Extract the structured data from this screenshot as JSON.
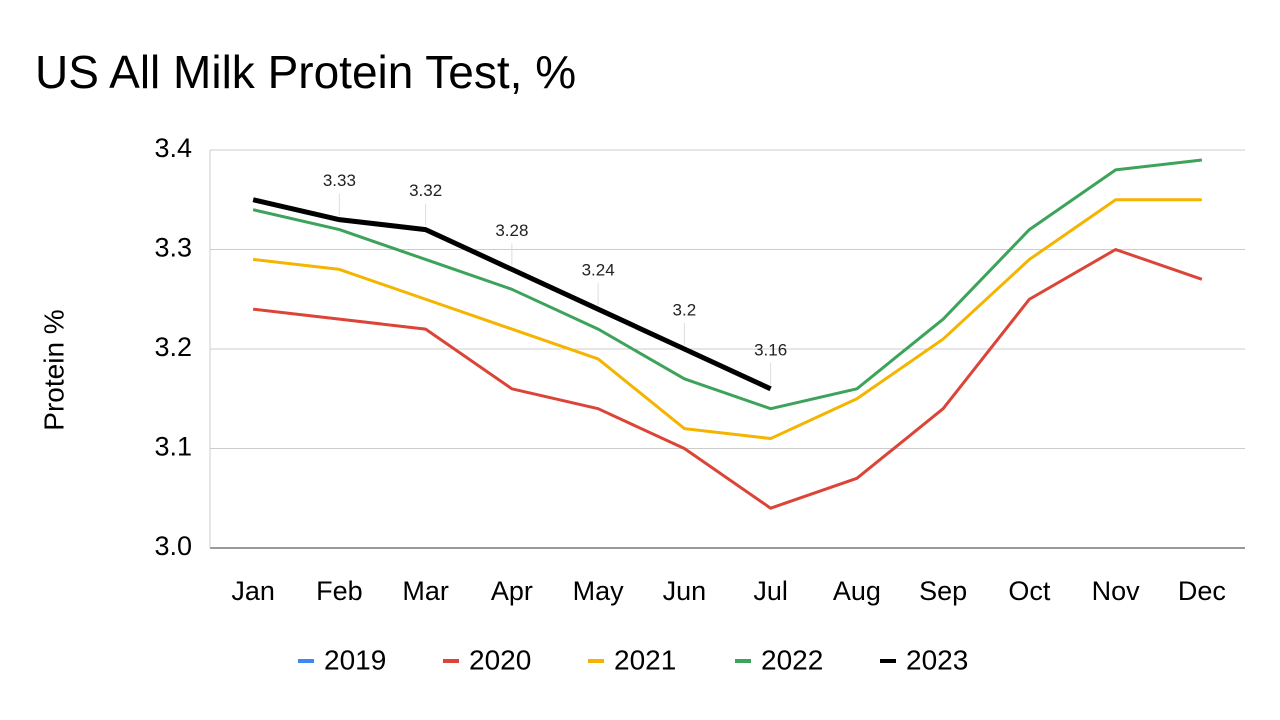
{
  "chart_data": {
    "type": "line",
    "title": "US All Milk Protein Test, %",
    "y_label": "Protein %",
    "categories": [
      "Jan",
      "Feb",
      "Mar",
      "Apr",
      "May",
      "Jun",
      "Jul",
      "Aug",
      "Sep",
      "Oct",
      "Nov",
      "Dec"
    ],
    "ylim": [
      3.0,
      3.4
    ],
    "yticks": [
      {
        "value": 3.0,
        "label": "3.0"
      },
      3.1,
      3.2,
      3.3,
      3.4
    ],
    "grid": true,
    "legend": "bottom",
    "series": [
      {
        "name": "2019",
        "color": "#4285f4",
        "values": [
          null,
          null,
          null,
          null,
          null,
          null,
          null,
          null,
          null,
          null,
          null,
          null
        ]
      },
      {
        "name": "2020",
        "color": "#db4437",
        "values": [
          3.24,
          3.23,
          3.22,
          3.16,
          3.14,
          3.1,
          3.04,
          3.07,
          3.14,
          3.25,
          3.3,
          3.27
        ]
      },
      {
        "name": "2021",
        "color": "#f4b400",
        "values": [
          3.29,
          3.28,
          3.25,
          3.22,
          3.19,
          3.12,
          3.11,
          3.15,
          3.21,
          3.29,
          3.35,
          3.35
        ]
      },
      {
        "name": "2022",
        "color": "#3da35a",
        "values": [
          3.34,
          3.32,
          3.29,
          3.26,
          3.22,
          3.17,
          3.14,
          3.16,
          3.23,
          3.32,
          3.38,
          3.39
        ]
      },
      {
        "name": "2023",
        "color": "#000000",
        "values": [
          3.35,
          3.33,
          3.32,
          3.28,
          3.24,
          3.2,
          3.16,
          null,
          null,
          null,
          null,
          null
        ],
        "value_labels": [
          null,
          "3.33",
          "3.32",
          "3.28",
          "3.24",
          "3.2",
          "3.16",
          null,
          null,
          null,
          null,
          null
        ]
      }
    ]
  }
}
